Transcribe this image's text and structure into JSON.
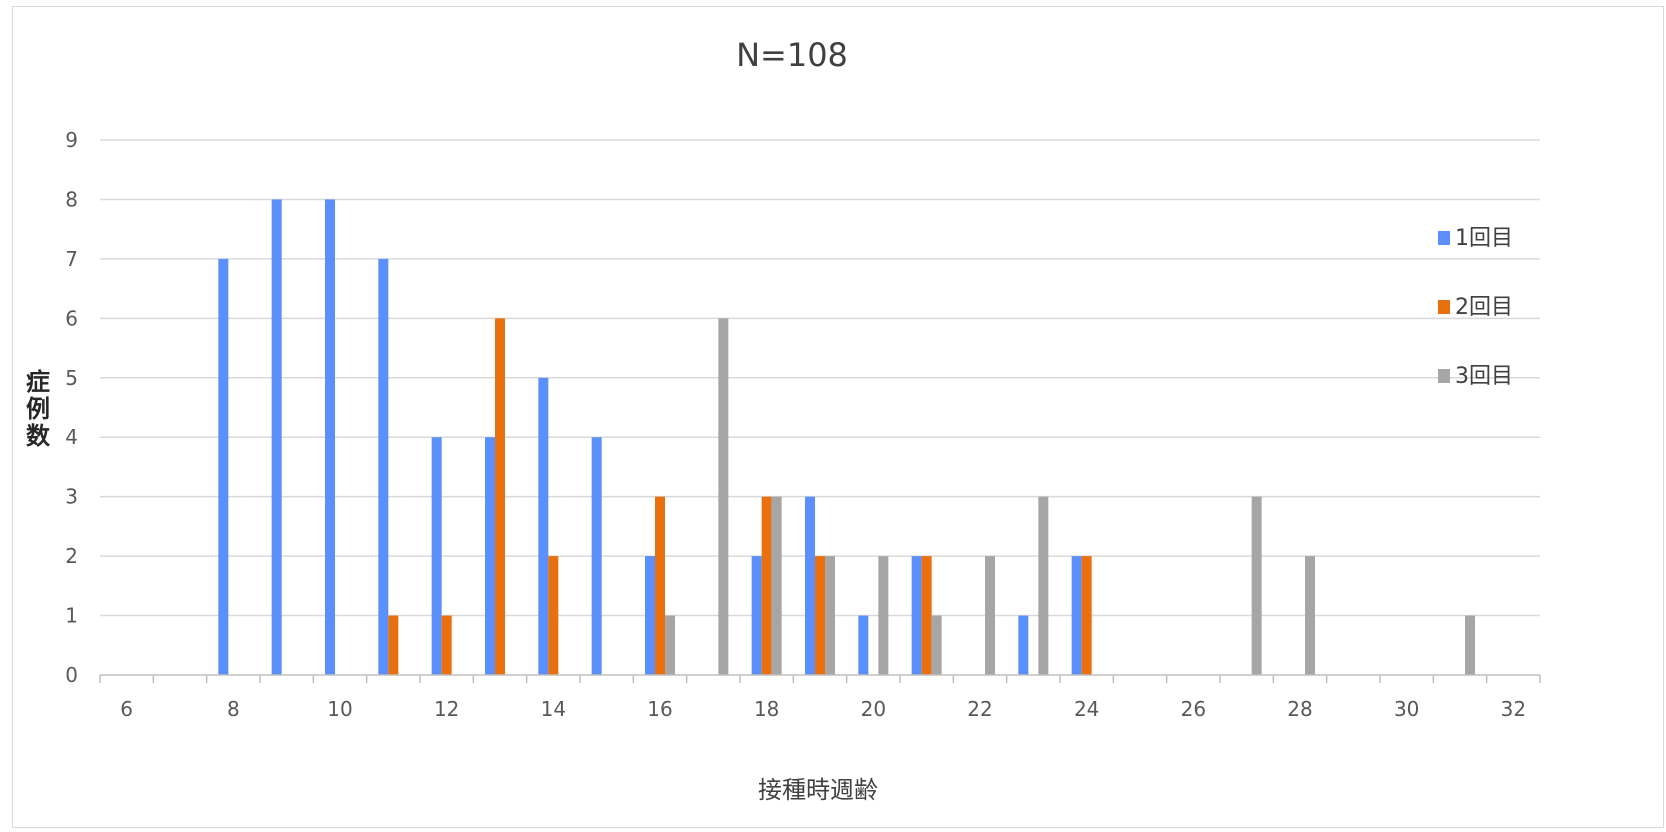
{
  "chart_data": {
    "type": "bar",
    "title": "N=108",
    "xlabel": "接種時週齢",
    "ylabel": "症例数",
    "x": [
      6,
      7,
      8,
      9,
      10,
      11,
      12,
      13,
      14,
      15,
      16,
      17,
      18,
      19,
      20,
      21,
      22,
      23,
      24,
      25,
      26,
      27,
      28,
      29,
      30,
      31,
      32
    ],
    "x_tick_labels": [
      "6",
      "8",
      "10",
      "12",
      "14",
      "16",
      "18",
      "20",
      "22",
      "24",
      "26",
      "28",
      "30",
      "32"
    ],
    "y_tick_labels": [
      "0",
      "1",
      "2",
      "3",
      "4",
      "5",
      "6",
      "7",
      "8",
      "9"
    ],
    "ylim": [
      0,
      9
    ],
    "grid": "horizontal",
    "legend_position": "right",
    "series": [
      {
        "name": "1回目",
        "color": "#5b8ff9",
        "values": [
          0,
          0,
          7,
          8,
          8,
          7,
          4,
          4,
          5,
          4,
          2,
          0,
          2,
          3,
          1,
          2,
          0,
          1,
          2,
          0,
          0,
          0,
          0,
          0,
          0,
          0,
          0
        ]
      },
      {
        "name": "2回目",
        "color": "#e8700f",
        "values": [
          0,
          0,
          0,
          0,
          0,
          1,
          1,
          6,
          2,
          0,
          3,
          0,
          3,
          2,
          0,
          2,
          0,
          0,
          2,
          0,
          0,
          0,
          0,
          0,
          0,
          0,
          0
        ]
      },
      {
        "name": "3回目",
        "color": "#a6a6a6",
        "values": [
          0,
          0,
          0,
          0,
          0,
          0,
          0,
          0,
          0,
          0,
          1,
          6,
          3,
          2,
          2,
          1,
          2,
          3,
          0,
          0,
          0,
          3,
          2,
          0,
          0,
          1,
          0
        ]
      }
    ]
  }
}
